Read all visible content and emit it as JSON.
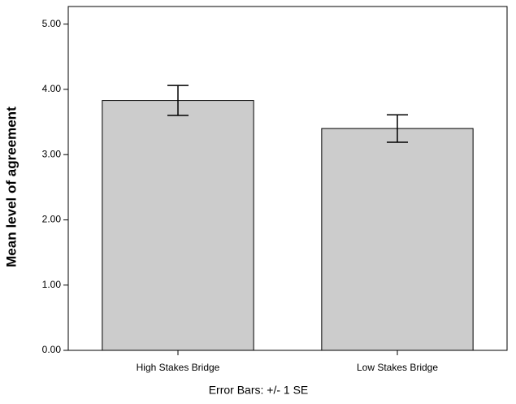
{
  "chart_data": {
    "type": "bar",
    "categories": [
      "High Stakes Bridge",
      "Low Stakes Bridge"
    ],
    "values": [
      3.83,
      3.4
    ],
    "error": [
      0.23,
      0.21
    ],
    "color": "#cccccc",
    "y_label": "Mean level of agreement",
    "annotation": "Error Bars: +/- 1 SE",
    "ylim": [
      0,
      5.27
    ],
    "yticks": [
      {
        "value": 0,
        "label": "0.00"
      },
      {
        "value": 1,
        "label": "1.00"
      },
      {
        "value": 2,
        "label": "2.00"
      },
      {
        "value": 3,
        "label": "3.00"
      },
      {
        "value": 4,
        "label": "4.00"
      },
      {
        "value": 5,
        "label": "5.00"
      }
    ]
  }
}
